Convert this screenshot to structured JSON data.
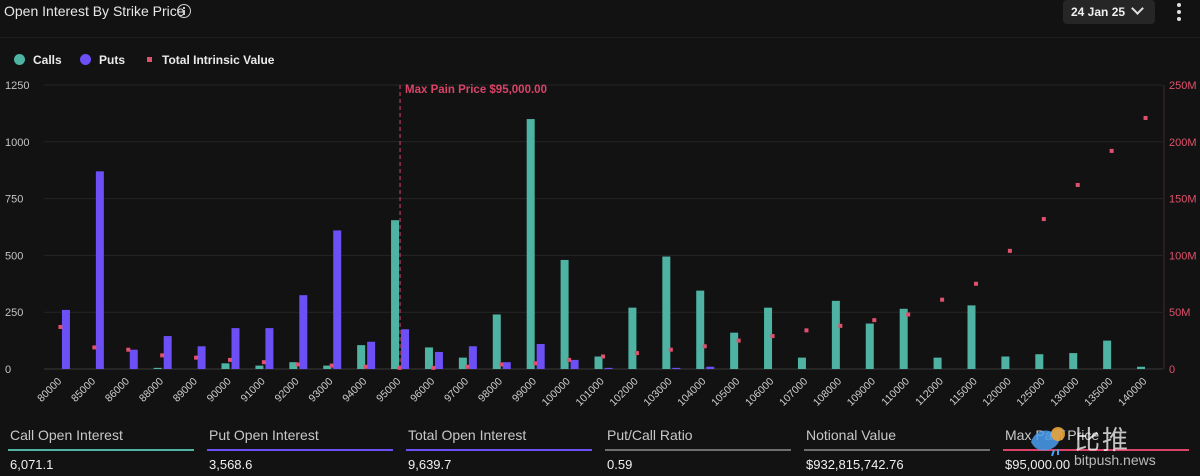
{
  "header": {
    "title": "Open Interest By Strike Price",
    "date_selector": "24 Jan 25"
  },
  "legend": [
    {
      "label": "Calls",
      "color": "#4fb3a3",
      "shape": "circle"
    },
    {
      "label": "Puts",
      "color": "#6c4ff5",
      "shape": "circle"
    },
    {
      "label": "Total Intrinsic Value",
      "color": "#e0516d",
      "shape": "square"
    }
  ],
  "colors": {
    "calls": "#4fb3a3",
    "puts": "#6c4ff5",
    "intrinsic": "#e0516d",
    "max_pain": "#d94468",
    "background": "#121212"
  },
  "chart_data": {
    "type": "bar",
    "categories": [
      "80000",
      "85000",
      "86000",
      "88000",
      "89000",
      "90000",
      "91000",
      "92000",
      "93000",
      "94000",
      "95000",
      "96000",
      "97000",
      "98000",
      "99000",
      "100000",
      "101000",
      "102000",
      "103000",
      "104000",
      "105000",
      "106000",
      "107000",
      "108000",
      "109000",
      "110000",
      "112000",
      "115000",
      "120000",
      "125000",
      "130000",
      "135000",
      "140000"
    ],
    "series": [
      {
        "name": "Calls",
        "axis": "left",
        "kind": "bar",
        "values": [
          0,
          0,
          0,
          5,
          0,
          25,
          15,
          30,
          15,
          105,
          655,
          95,
          50,
          240,
          1100,
          480,
          55,
          270,
          495,
          345,
          160,
          270,
          50,
          300,
          200,
          265,
          50,
          280,
          55,
          65,
          70,
          125,
          10
        ]
      },
      {
        "name": "Puts",
        "axis": "left",
        "kind": "bar",
        "values": [
          260,
          870,
          85,
          145,
          100,
          180,
          180,
          325,
          610,
          120,
          175,
          75,
          100,
          30,
          110,
          40,
          5,
          0,
          5,
          10,
          0,
          0,
          0,
          0,
          0,
          0,
          0,
          0,
          0,
          0,
          0,
          0,
          0
        ]
      },
      {
        "name": "Total Intrinsic Value",
        "axis": "right",
        "kind": "scatter",
        "values": [
          37,
          19,
          17,
          12,
          10,
          8,
          6,
          4,
          3,
          2,
          1,
          1,
          2,
          4,
          5,
          8,
          11,
          14,
          17,
          20,
          25,
          29,
          34,
          38,
          43,
          48,
          61,
          75,
          104,
          132,
          162,
          192,
          221
        ]
      }
    ],
    "yAxisLeft": {
      "min": 0,
      "max": 1250,
      "ticks": [
        "0",
        "250",
        "500",
        "750",
        "1000",
        "1250"
      ]
    },
    "yAxisRight": {
      "min": 0,
      "max": 250,
      "unit": "M",
      "ticks": [
        "0",
        "50M",
        "100M",
        "150M",
        "200M",
        "250M"
      ]
    },
    "annotation": {
      "label": "Max Pain Price $95,000.00",
      "at_category": "95000"
    },
    "grid": true,
    "legend_position": "top-left"
  },
  "stats": [
    {
      "label": "Call Open Interest",
      "value": "6,071.1",
      "color": "#4fb3a3"
    },
    {
      "label": "Put Open Interest",
      "value": "3,568.6",
      "color": "#6c4ff5"
    },
    {
      "label": "Total Open Interest",
      "value": "9,639.7",
      "color": "#6c4ff5"
    },
    {
      "label": "Put/Call Ratio",
      "value": "0.59",
      "color": "#6e6e6e"
    },
    {
      "label": "Notional Value",
      "value": "$932,815,742.76",
      "color": "#6e6e6e"
    },
    {
      "label": "Max Pain Price",
      "value": "$95,000.00",
      "color": "#d94468"
    }
  ],
  "watermark": {
    "cn": "比推",
    "en": "bitpush.news"
  }
}
